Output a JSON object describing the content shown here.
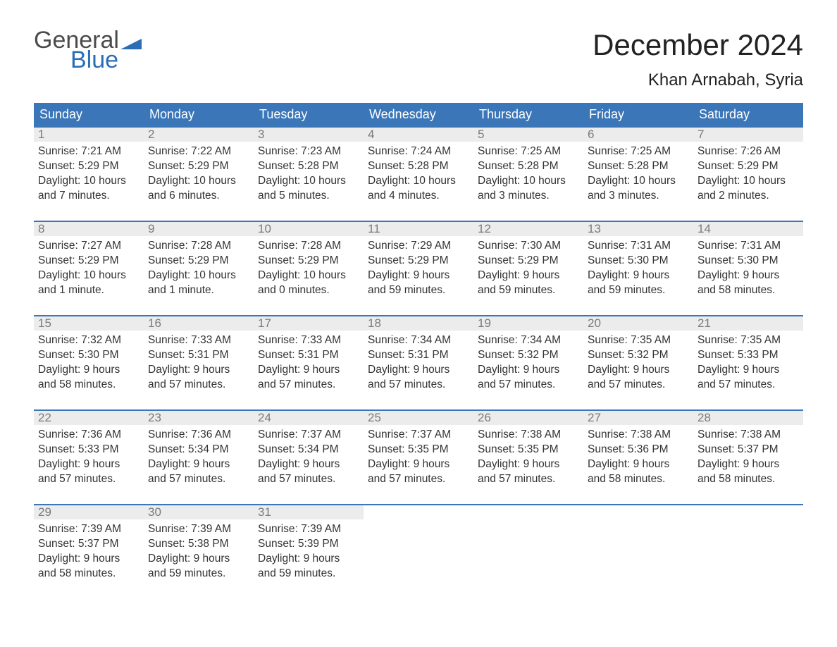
{
  "brand": {
    "general": "General",
    "blue": "Blue"
  },
  "title": "December 2024",
  "location": "Khan Arnabah, Syria",
  "header_bg": "#3a76b8",
  "header_text_color": "#ffffff",
  "week_border_color": "#3a76b8",
  "daynum_band_bg": "#ececec",
  "daynum_color": "#7a7a7a",
  "text_color": "#333333",
  "background_color": "#ffffff",
  "logo_blue_color": "#2a6eb6",
  "logo_gray_color": "#4a4a4a",
  "title_fontsize": 42,
  "location_fontsize": 24,
  "weekday_fontsize": 18,
  "daynum_fontsize": 17,
  "detail_fontsize": 15.5,
  "weekdays": [
    "Sunday",
    "Monday",
    "Tuesday",
    "Wednesday",
    "Thursday",
    "Friday",
    "Saturday"
  ],
  "weeks": [
    [
      {
        "day": "1",
        "sunrise": "Sunrise: 7:21 AM",
        "sunset": "Sunset: 5:29 PM",
        "daylight1": "Daylight: 10 hours",
        "daylight2": "and 7 minutes."
      },
      {
        "day": "2",
        "sunrise": "Sunrise: 7:22 AM",
        "sunset": "Sunset: 5:29 PM",
        "daylight1": "Daylight: 10 hours",
        "daylight2": "and 6 minutes."
      },
      {
        "day": "3",
        "sunrise": "Sunrise: 7:23 AM",
        "sunset": "Sunset: 5:28 PM",
        "daylight1": "Daylight: 10 hours",
        "daylight2": "and 5 minutes."
      },
      {
        "day": "4",
        "sunrise": "Sunrise: 7:24 AM",
        "sunset": "Sunset: 5:28 PM",
        "daylight1": "Daylight: 10 hours",
        "daylight2": "and 4 minutes."
      },
      {
        "day": "5",
        "sunrise": "Sunrise: 7:25 AM",
        "sunset": "Sunset: 5:28 PM",
        "daylight1": "Daylight: 10 hours",
        "daylight2": "and 3 minutes."
      },
      {
        "day": "6",
        "sunrise": "Sunrise: 7:25 AM",
        "sunset": "Sunset: 5:28 PM",
        "daylight1": "Daylight: 10 hours",
        "daylight2": "and 3 minutes."
      },
      {
        "day": "7",
        "sunrise": "Sunrise: 7:26 AM",
        "sunset": "Sunset: 5:29 PM",
        "daylight1": "Daylight: 10 hours",
        "daylight2": "and 2 minutes."
      }
    ],
    [
      {
        "day": "8",
        "sunrise": "Sunrise: 7:27 AM",
        "sunset": "Sunset: 5:29 PM",
        "daylight1": "Daylight: 10 hours",
        "daylight2": "and 1 minute."
      },
      {
        "day": "9",
        "sunrise": "Sunrise: 7:28 AM",
        "sunset": "Sunset: 5:29 PM",
        "daylight1": "Daylight: 10 hours",
        "daylight2": "and 1 minute."
      },
      {
        "day": "10",
        "sunrise": "Sunrise: 7:28 AM",
        "sunset": "Sunset: 5:29 PM",
        "daylight1": "Daylight: 10 hours",
        "daylight2": "and 0 minutes."
      },
      {
        "day": "11",
        "sunrise": "Sunrise: 7:29 AM",
        "sunset": "Sunset: 5:29 PM",
        "daylight1": "Daylight: 9 hours",
        "daylight2": "and 59 minutes."
      },
      {
        "day": "12",
        "sunrise": "Sunrise: 7:30 AM",
        "sunset": "Sunset: 5:29 PM",
        "daylight1": "Daylight: 9 hours",
        "daylight2": "and 59 minutes."
      },
      {
        "day": "13",
        "sunrise": "Sunrise: 7:31 AM",
        "sunset": "Sunset: 5:30 PM",
        "daylight1": "Daylight: 9 hours",
        "daylight2": "and 59 minutes."
      },
      {
        "day": "14",
        "sunrise": "Sunrise: 7:31 AM",
        "sunset": "Sunset: 5:30 PM",
        "daylight1": "Daylight: 9 hours",
        "daylight2": "and 58 minutes."
      }
    ],
    [
      {
        "day": "15",
        "sunrise": "Sunrise: 7:32 AM",
        "sunset": "Sunset: 5:30 PM",
        "daylight1": "Daylight: 9 hours",
        "daylight2": "and 58 minutes."
      },
      {
        "day": "16",
        "sunrise": "Sunrise: 7:33 AM",
        "sunset": "Sunset: 5:31 PM",
        "daylight1": "Daylight: 9 hours",
        "daylight2": "and 57 minutes."
      },
      {
        "day": "17",
        "sunrise": "Sunrise: 7:33 AM",
        "sunset": "Sunset: 5:31 PM",
        "daylight1": "Daylight: 9 hours",
        "daylight2": "and 57 minutes."
      },
      {
        "day": "18",
        "sunrise": "Sunrise: 7:34 AM",
        "sunset": "Sunset: 5:31 PM",
        "daylight1": "Daylight: 9 hours",
        "daylight2": "and 57 minutes."
      },
      {
        "day": "19",
        "sunrise": "Sunrise: 7:34 AM",
        "sunset": "Sunset: 5:32 PM",
        "daylight1": "Daylight: 9 hours",
        "daylight2": "and 57 minutes."
      },
      {
        "day": "20",
        "sunrise": "Sunrise: 7:35 AM",
        "sunset": "Sunset: 5:32 PM",
        "daylight1": "Daylight: 9 hours",
        "daylight2": "and 57 minutes."
      },
      {
        "day": "21",
        "sunrise": "Sunrise: 7:35 AM",
        "sunset": "Sunset: 5:33 PM",
        "daylight1": "Daylight: 9 hours",
        "daylight2": "and 57 minutes."
      }
    ],
    [
      {
        "day": "22",
        "sunrise": "Sunrise: 7:36 AM",
        "sunset": "Sunset: 5:33 PM",
        "daylight1": "Daylight: 9 hours",
        "daylight2": "and 57 minutes."
      },
      {
        "day": "23",
        "sunrise": "Sunrise: 7:36 AM",
        "sunset": "Sunset: 5:34 PM",
        "daylight1": "Daylight: 9 hours",
        "daylight2": "and 57 minutes."
      },
      {
        "day": "24",
        "sunrise": "Sunrise: 7:37 AM",
        "sunset": "Sunset: 5:34 PM",
        "daylight1": "Daylight: 9 hours",
        "daylight2": "and 57 minutes."
      },
      {
        "day": "25",
        "sunrise": "Sunrise: 7:37 AM",
        "sunset": "Sunset: 5:35 PM",
        "daylight1": "Daylight: 9 hours",
        "daylight2": "and 57 minutes."
      },
      {
        "day": "26",
        "sunrise": "Sunrise: 7:38 AM",
        "sunset": "Sunset: 5:35 PM",
        "daylight1": "Daylight: 9 hours",
        "daylight2": "and 57 minutes."
      },
      {
        "day": "27",
        "sunrise": "Sunrise: 7:38 AM",
        "sunset": "Sunset: 5:36 PM",
        "daylight1": "Daylight: 9 hours",
        "daylight2": "and 58 minutes."
      },
      {
        "day": "28",
        "sunrise": "Sunrise: 7:38 AM",
        "sunset": "Sunset: 5:37 PM",
        "daylight1": "Daylight: 9 hours",
        "daylight2": "and 58 minutes."
      }
    ],
    [
      {
        "day": "29",
        "sunrise": "Sunrise: 7:39 AM",
        "sunset": "Sunset: 5:37 PM",
        "daylight1": "Daylight: 9 hours",
        "daylight2": "and 58 minutes."
      },
      {
        "day": "30",
        "sunrise": "Sunrise: 7:39 AM",
        "sunset": "Sunset: 5:38 PM",
        "daylight1": "Daylight: 9 hours",
        "daylight2": "and 59 minutes."
      },
      {
        "day": "31",
        "sunrise": "Sunrise: 7:39 AM",
        "sunset": "Sunset: 5:39 PM",
        "daylight1": "Daylight: 9 hours",
        "daylight2": "and 59 minutes."
      },
      {
        "empty": true
      },
      {
        "empty": true
      },
      {
        "empty": true
      },
      {
        "empty": true
      }
    ]
  ]
}
